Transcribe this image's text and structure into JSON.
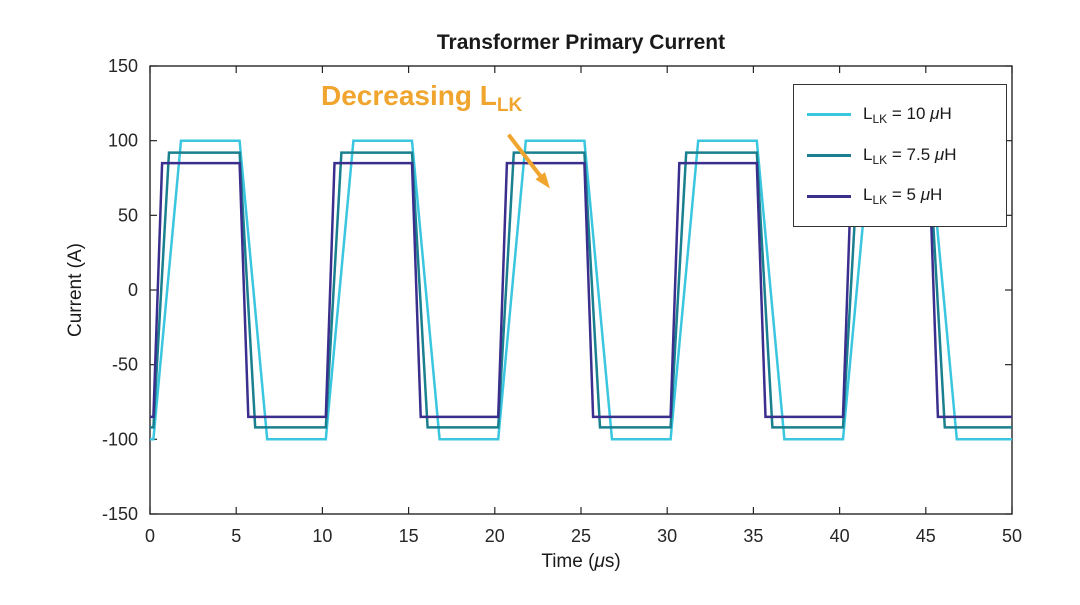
{
  "chart_data": {
    "type": "line",
    "title": "Transformer Primary Current",
    "xlabel": {
      "pre": "Time (",
      "mu": "μ",
      "post": "s)"
    },
    "ylabel": "Current (A)",
    "xlim": [
      0,
      50
    ],
    "ylim": [
      -150,
      150
    ],
    "xticks": [
      0,
      5,
      10,
      15,
      20,
      25,
      30,
      35,
      40,
      45,
      50
    ],
    "yticks": [
      -150,
      -100,
      -50,
      0,
      50,
      100,
      150
    ],
    "grid": false,
    "axis_color": "#262626",
    "legend_position": "top-right",
    "waveform": {
      "shape": "trapezoidal_square_wave",
      "period_us": 10,
      "duty": 0.5,
      "transition_start_us": 0.2
    },
    "series": [
      {
        "label": {
          "main": "L",
          "sub": "LK",
          "eq": " = 10 ",
          "mu": "μ",
          "unit": "H"
        },
        "color": "#3BC6DF",
        "plateau_A": 100,
        "transition_us": 1.6
      },
      {
        "label": {
          "main": "L",
          "sub": "LK",
          "eq": " = 7.5 ",
          "mu": "μ",
          "unit": "H"
        },
        "color": "#1A7F8E",
        "plateau_A": 92,
        "transition_us": 0.9
      },
      {
        "label": {
          "main": "L",
          "sub": "LK",
          "eq": " = 5 ",
          "mu": "μ",
          "unit": "H"
        },
        "color": "#3A2F8C",
        "plateau_A": 85,
        "transition_us": 0.5
      }
    ],
    "annotation": {
      "main": "Decreasing L",
      "sub": "LK",
      "color": "#F0A52F",
      "arrow_from": [
        20.8,
        104
      ],
      "arrow_to": [
        23.2,
        68
      ]
    }
  }
}
